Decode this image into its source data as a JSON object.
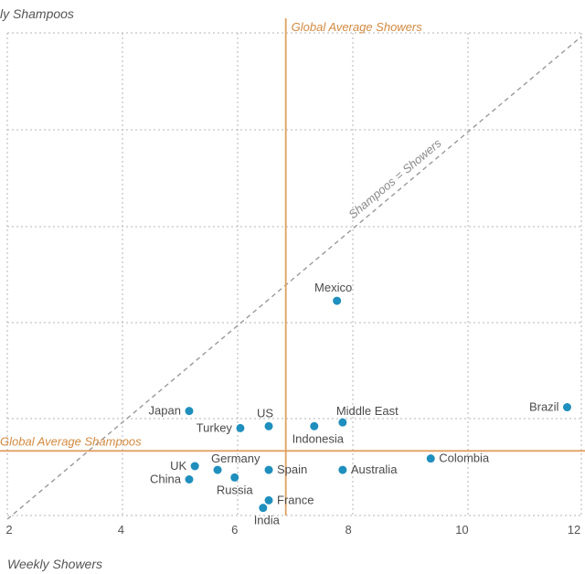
{
  "chart_data": {
    "type": "scatter",
    "xlabel": "Weekly Showers",
    "ylabel": "ly Shampoos",
    "xlim": [
      2,
      12.1
    ],
    "ylim": [
      0,
      12.7
    ],
    "x_ticks": [
      2,
      4,
      6,
      8,
      10,
      12
    ],
    "grid": true,
    "point_color": "#1f8fbd",
    "reference_color": "#e0a060",
    "diagonal_color": "#999999",
    "points": [
      {
        "name": "Brazil",
        "x": 11.85,
        "y": 2.85,
        "label_pos": "left"
      },
      {
        "name": "Mexico",
        "x": 7.8,
        "y": 5.65,
        "label_pos": "top"
      },
      {
        "name": "Japan",
        "x": 5.2,
        "y": 2.75,
        "label_pos": "left"
      },
      {
        "name": "US",
        "x": 6.6,
        "y": 2.35,
        "label_pos": "top"
      },
      {
        "name": "Middle East",
        "x": 7.9,
        "y": 2.45,
        "label_pos": "top-right"
      },
      {
        "name": "Turkey",
        "x": 6.1,
        "y": 2.3,
        "label_pos": "left"
      },
      {
        "name": "Indonesia",
        "x": 7.4,
        "y": 2.35,
        "label_pos": "bottom"
      },
      {
        "name": "Colombia",
        "x": 9.45,
        "y": 1.5,
        "label_pos": "right"
      },
      {
        "name": "UK",
        "x": 5.3,
        "y": 1.3,
        "label_pos": "left"
      },
      {
        "name": "Germany",
        "x": 5.7,
        "y": 1.2,
        "label_pos": "top-right"
      },
      {
        "name": "Spain",
        "x": 6.6,
        "y": 1.2,
        "label_pos": "right"
      },
      {
        "name": "Australia",
        "x": 7.9,
        "y": 1.2,
        "label_pos": "right"
      },
      {
        "name": "China",
        "x": 5.2,
        "y": 0.95,
        "label_pos": "left"
      },
      {
        "name": "Russia",
        "x": 6.0,
        "y": 1.0,
        "label_pos": "bottom-left"
      },
      {
        "name": "France",
        "x": 6.6,
        "y": 0.4,
        "label_pos": "right"
      },
      {
        "name": "India",
        "x": 6.5,
        "y": 0.2,
        "label_pos": "bottom"
      }
    ],
    "reference_lines": [
      {
        "label": "Global Average Showers",
        "axis": "x",
        "value": 6.9
      },
      {
        "label": "Global Average Shampoos",
        "axis": "y",
        "value": 1.7
      }
    ],
    "diagonal_label": "Shampoos = Showers"
  }
}
